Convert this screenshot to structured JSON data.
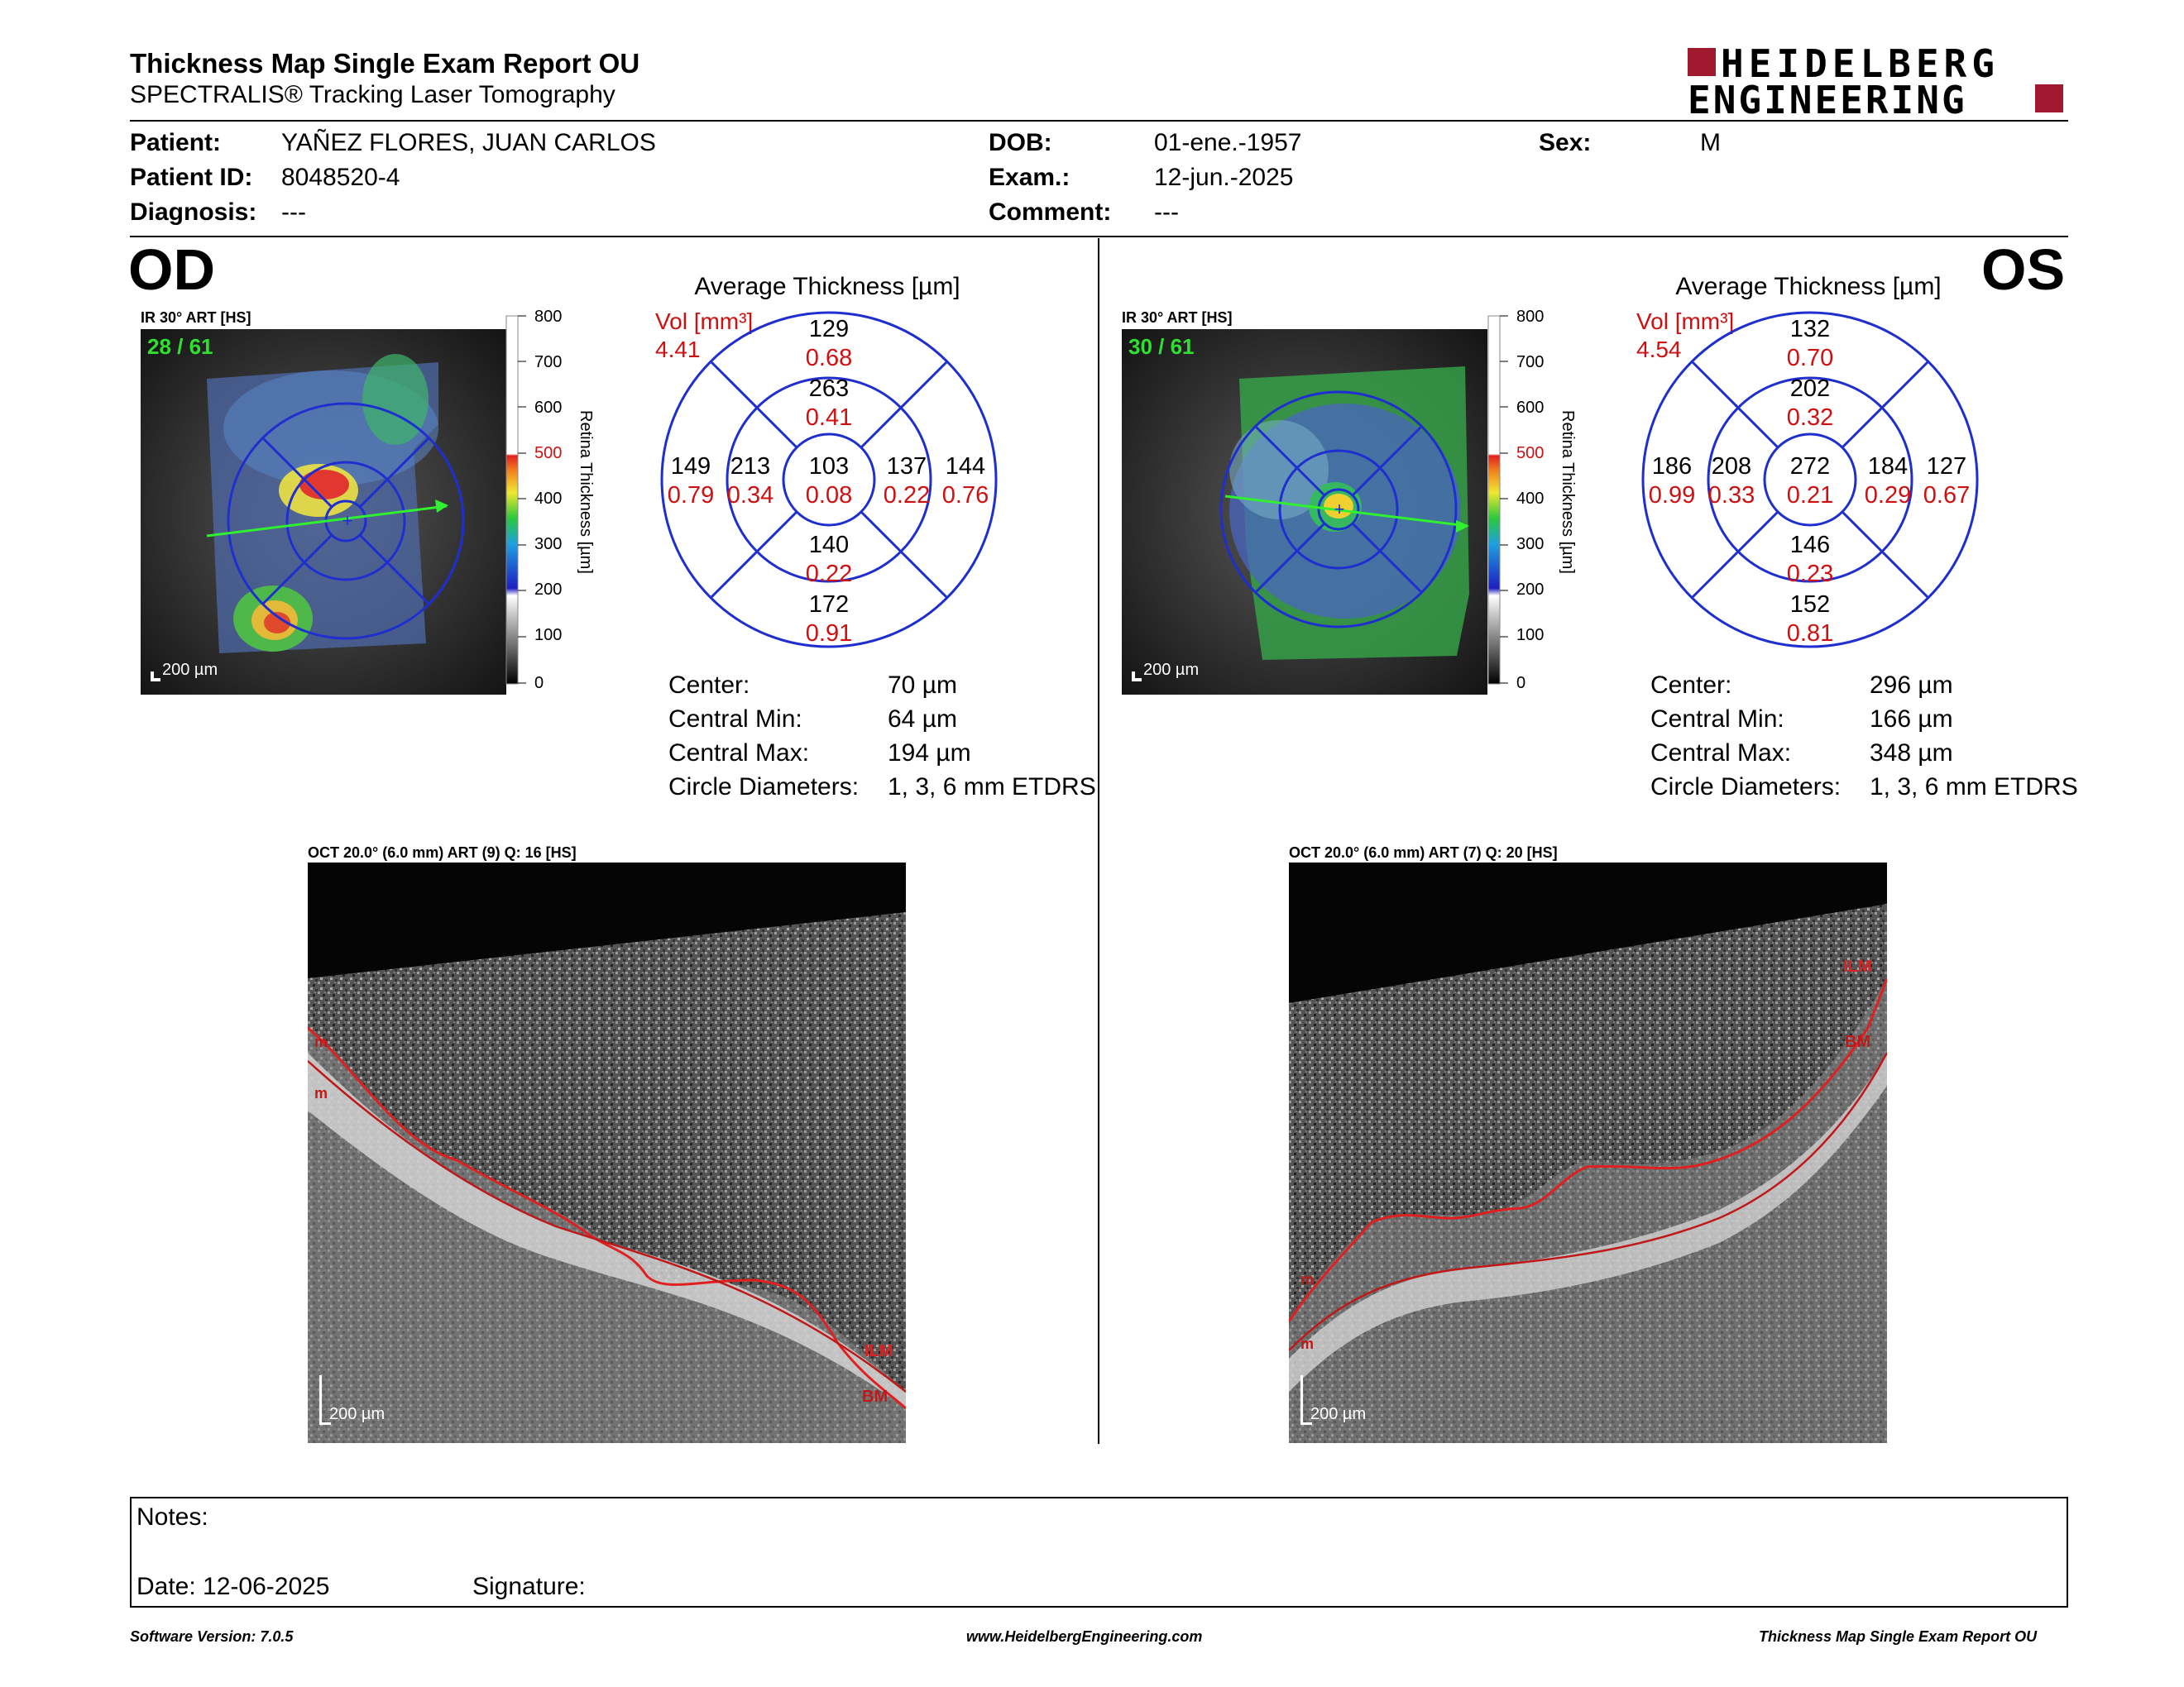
{
  "header": {
    "title": "Thickness Map Single Exam Report OU",
    "subtitle": "SPECTRALIS® Tracking Laser Tomography",
    "logo_line1": "HEIDELBERG",
    "logo_line2": "ENGINEERING"
  },
  "patient": {
    "patient_label": "Patient:",
    "patient_value": "YAÑEZ FLORES, JUAN CARLOS",
    "id_label": "Patient ID:",
    "id_value": "8048520-4",
    "diagnosis_label": "Diagnosis:",
    "diagnosis_value": "---",
    "dob_label": "DOB:",
    "dob_value": "01-ene.-1957",
    "exam_label": "Exam.:",
    "exam_value": "12-jun.-2025",
    "comment_label": "Comment:",
    "comment_value": "---",
    "sex_label": "Sex:",
    "sex_value": "M"
  },
  "colorbar": {
    "ticks": [
      "800",
      "700",
      "600",
      "500",
      "400",
      "300",
      "200",
      "100",
      "0"
    ],
    "label": "Retina Thickness [µm]"
  },
  "od": {
    "eye": "OD",
    "ir_caption": "IR 30° ART [HS]",
    "slice": "28 / 61",
    "scale": "200 µm",
    "avg_title": "Average Thickness [µm]",
    "vol_label": "Vol [mm³]",
    "vol_value": "4.41",
    "sectors": {
      "outer_sup": "129",
      "outer_sup_vol": "0.68",
      "inner_sup": "263",
      "inner_sup_vol": "0.41",
      "outer_nasal": "149",
      "outer_nasal_vol": "0.79",
      "inner_nasal": "213",
      "inner_nasal_vol": "0.34",
      "center": "103",
      "center_vol": "0.08",
      "inner_temp": "137",
      "inner_temp_vol": "0.22",
      "outer_temp": "144",
      "outer_temp_vol": "0.76",
      "inner_inf": "140",
      "inner_inf_vol": "0.22",
      "outer_inf": "172",
      "outer_inf_vol": "0.91"
    },
    "stats": {
      "center_label": "Center:",
      "center_value": "70 µm",
      "min_label": "Central Min:",
      "min_value": "64 µm",
      "max_label": "Central Max:",
      "max_value": "194 µm",
      "diam_label": "Circle Diameters:",
      "diam_value": "1, 3, 6 mm ETDRS"
    },
    "oct_caption": "OCT 20.0° (6.0 mm) ART (9) Q: 16 [HS]",
    "oct_scale": "200 µm",
    "ilm": "ILM",
    "bm": "BM"
  },
  "os": {
    "eye": "OS",
    "ir_caption": "IR 30° ART [HS]",
    "slice": "30 / 61",
    "scale": "200 µm",
    "avg_title": "Average Thickness [µm]",
    "vol_label": "Vol [mm³]",
    "vol_value": "4.54",
    "sectors": {
      "outer_sup": "132",
      "outer_sup_vol": "0.70",
      "inner_sup": "202",
      "inner_sup_vol": "0.32",
      "outer_nasal": "186",
      "outer_nasal_vol": "0.99",
      "inner_nasal": "208",
      "inner_nasal_vol": "0.33",
      "center": "272",
      "center_vol": "0.21",
      "inner_temp": "184",
      "inner_temp_vol": "0.29",
      "outer_temp": "127",
      "outer_temp_vol": "0.67",
      "inner_inf": "146",
      "inner_inf_vol": "0.23",
      "outer_inf": "152",
      "outer_inf_vol": "0.81"
    },
    "stats": {
      "center_label": "Center:",
      "center_value": "296 µm",
      "min_label": "Central Min:",
      "min_value": "166 µm",
      "max_label": "Central Max:",
      "max_value": "348 µm",
      "diam_label": "Circle Diameters:",
      "diam_value": "1, 3, 6 mm ETDRS"
    },
    "oct_caption": "OCT 20.0° (6.0 mm) ART (7) Q: 20 [HS]",
    "oct_scale": "200 µm",
    "ilm": "ILM",
    "bm": "BM"
  },
  "notes": {
    "notes_label": "Notes:",
    "date_label": "Date: 12-06-2025",
    "signature_label": "Signature:"
  },
  "footer": {
    "software": "Software Version: 7.0.5",
    "website": "www.HeidelbergEngineering.com",
    "report": "Thickness Map Single Exam Report OU"
  }
}
